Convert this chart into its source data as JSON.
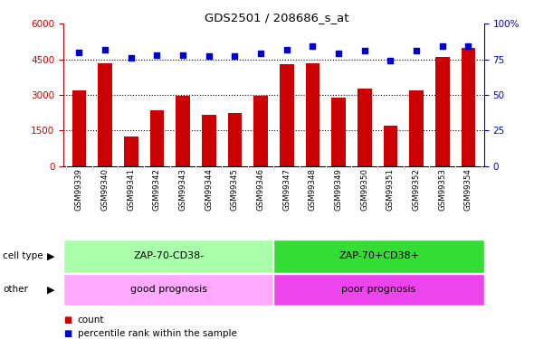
{
  "title": "GDS2501 / 208686_s_at",
  "samples": [
    "GSM99339",
    "GSM99340",
    "GSM99341",
    "GSM99342",
    "GSM99343",
    "GSM99344",
    "GSM99345",
    "GSM99346",
    "GSM99347",
    "GSM99348",
    "GSM99349",
    "GSM99350",
    "GSM99351",
    "GSM99352",
    "GSM99353",
    "GSM99354"
  ],
  "counts": [
    3200,
    4350,
    1250,
    2350,
    2950,
    2150,
    2250,
    2950,
    4300,
    4350,
    2900,
    3250,
    1700,
    3200,
    4600,
    5000
  ],
  "percentiles": [
    80,
    82,
    76,
    78,
    78,
    77,
    77,
    79,
    82,
    84,
    79,
    81,
    74,
    81,
    84,
    84
  ],
  "bar_color": "#CC0000",
  "dot_color": "#0000CC",
  "ylim_left": [
    0,
    6000
  ],
  "ylim_right": [
    0,
    100
  ],
  "yticks_left": [
    0,
    1500,
    3000,
    4500,
    6000
  ],
  "yticks_right": [
    0,
    25,
    50,
    75,
    100
  ],
  "cell_type_labels": [
    "ZAP-70-CD38-",
    "ZAP-70+CD38+"
  ],
  "cell_type_color_left": "#AAFFAA",
  "cell_type_color_right": "#33DD33",
  "other_labels": [
    "good prognosis",
    "poor prognosis"
  ],
  "other_color_left": "#FFAAFF",
  "other_color_right": "#EE44EE",
  "split_index": 8,
  "legend_count": "count",
  "legend_percentile": "percentile rank within the sample",
  "bg_color": "#FFFFFF",
  "tick_label_bg": "#CCCCCC"
}
